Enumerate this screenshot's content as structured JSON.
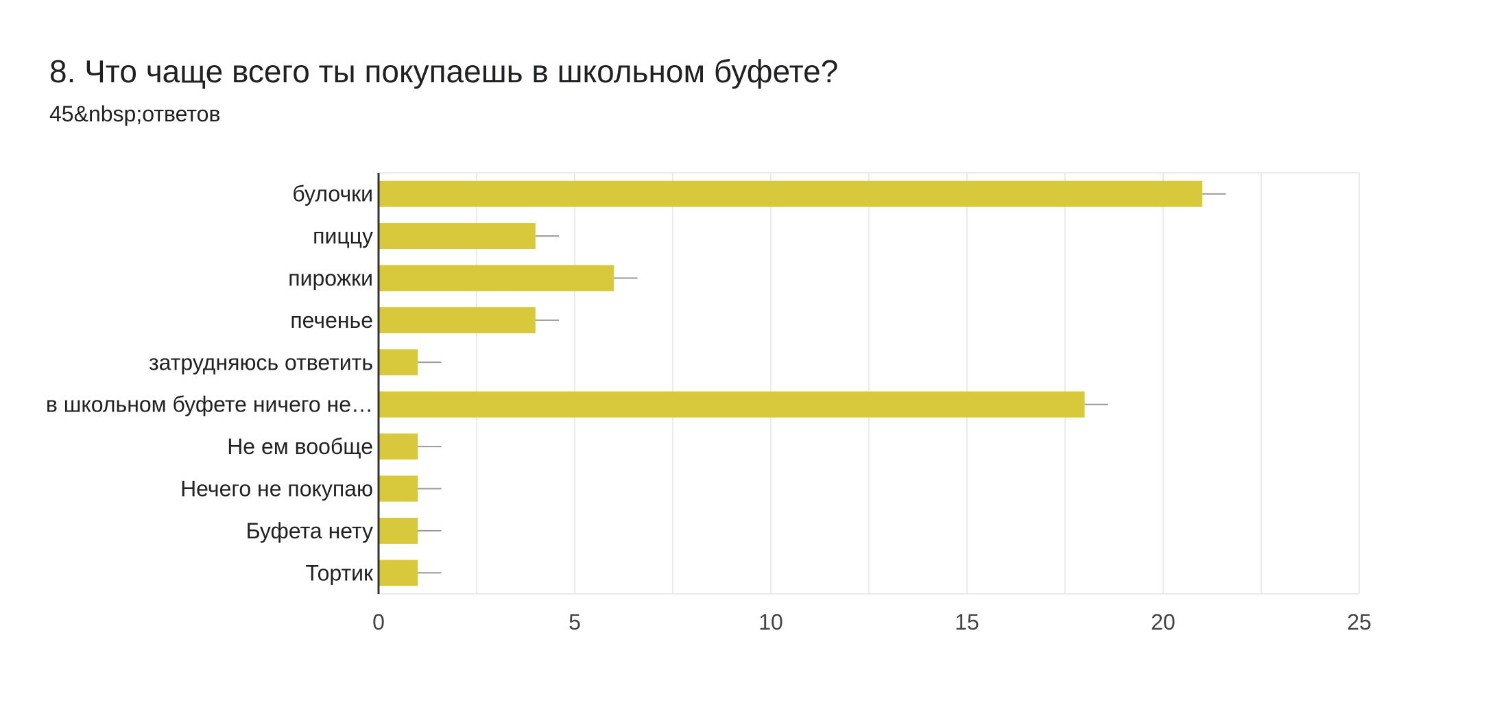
{
  "header": {
    "title": "8. Что чаще всего ты покупаешь в школьном буфете?",
    "subtitle": "45&nbsp;ответов"
  },
  "colors": {
    "bar": "#d8c93c",
    "grid": "#ebebeb",
    "axis": "#333333",
    "error_bar": "#999999"
  },
  "chart_data": {
    "type": "bar",
    "orientation": "horizontal",
    "categories": [
      "булочки",
      "пиццу",
      "пирожки",
      "печенье",
      "затрудняюсь ответить",
      "в школьном буфете ничего не…",
      "Не ем вообще",
      "Нечего не покупаю",
      "Буфета нету",
      "Тортик"
    ],
    "values": [
      21,
      4,
      6,
      4,
      1,
      18,
      1,
      1,
      1,
      1
    ],
    "error_bar_extent": 0.6,
    "xlim": [
      0,
      25
    ],
    "xticks": [
      "0",
      "5",
      "10",
      "15",
      "20",
      "25"
    ],
    "grid": true,
    "legend": "none"
  }
}
